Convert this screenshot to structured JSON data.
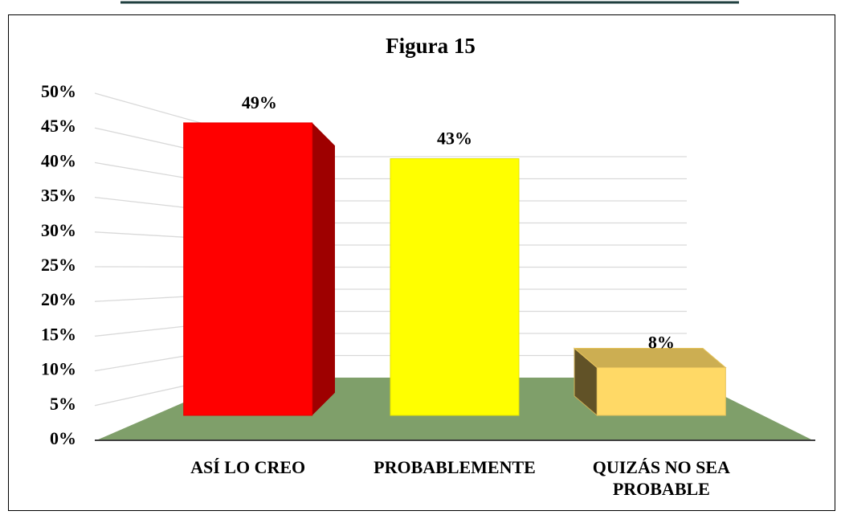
{
  "chart_data": {
    "type": "bar3d",
    "title": "Figura 15",
    "categories": [
      "ASÍ LO CREO",
      "PROBABLEMENTE",
      "QUIZÁS NO SEA PROBABLE"
    ],
    "series": [
      {
        "name": null,
        "colors": [
          "#ff0000",
          "#ffff00",
          "#ffd966"
        ],
        "values": [
          49,
          43,
          8
        ],
        "value_labels": [
          "49%",
          "43%",
          "8%"
        ]
      }
    ],
    "ylim": [
      0,
      50
    ],
    "yticks": [
      {
        "value": 0,
        "label": "0%"
      },
      {
        "value": 5,
        "label": "5%"
      },
      {
        "value": 10,
        "label": "10%"
      },
      {
        "value": 15,
        "label": "15%"
      },
      {
        "value": 20,
        "label": "20%"
      },
      {
        "value": 25,
        "label": "25%"
      },
      {
        "value": 30,
        "label": "30%"
      },
      {
        "value": 35,
        "label": "35%"
      },
      {
        "value": 40,
        "label": "40%"
      },
      {
        "value": 45,
        "label": "45%"
      },
      {
        "value": 50,
        "label": "50%"
      }
    ],
    "grid": true,
    "floor_color": "#7f9f6a"
  }
}
